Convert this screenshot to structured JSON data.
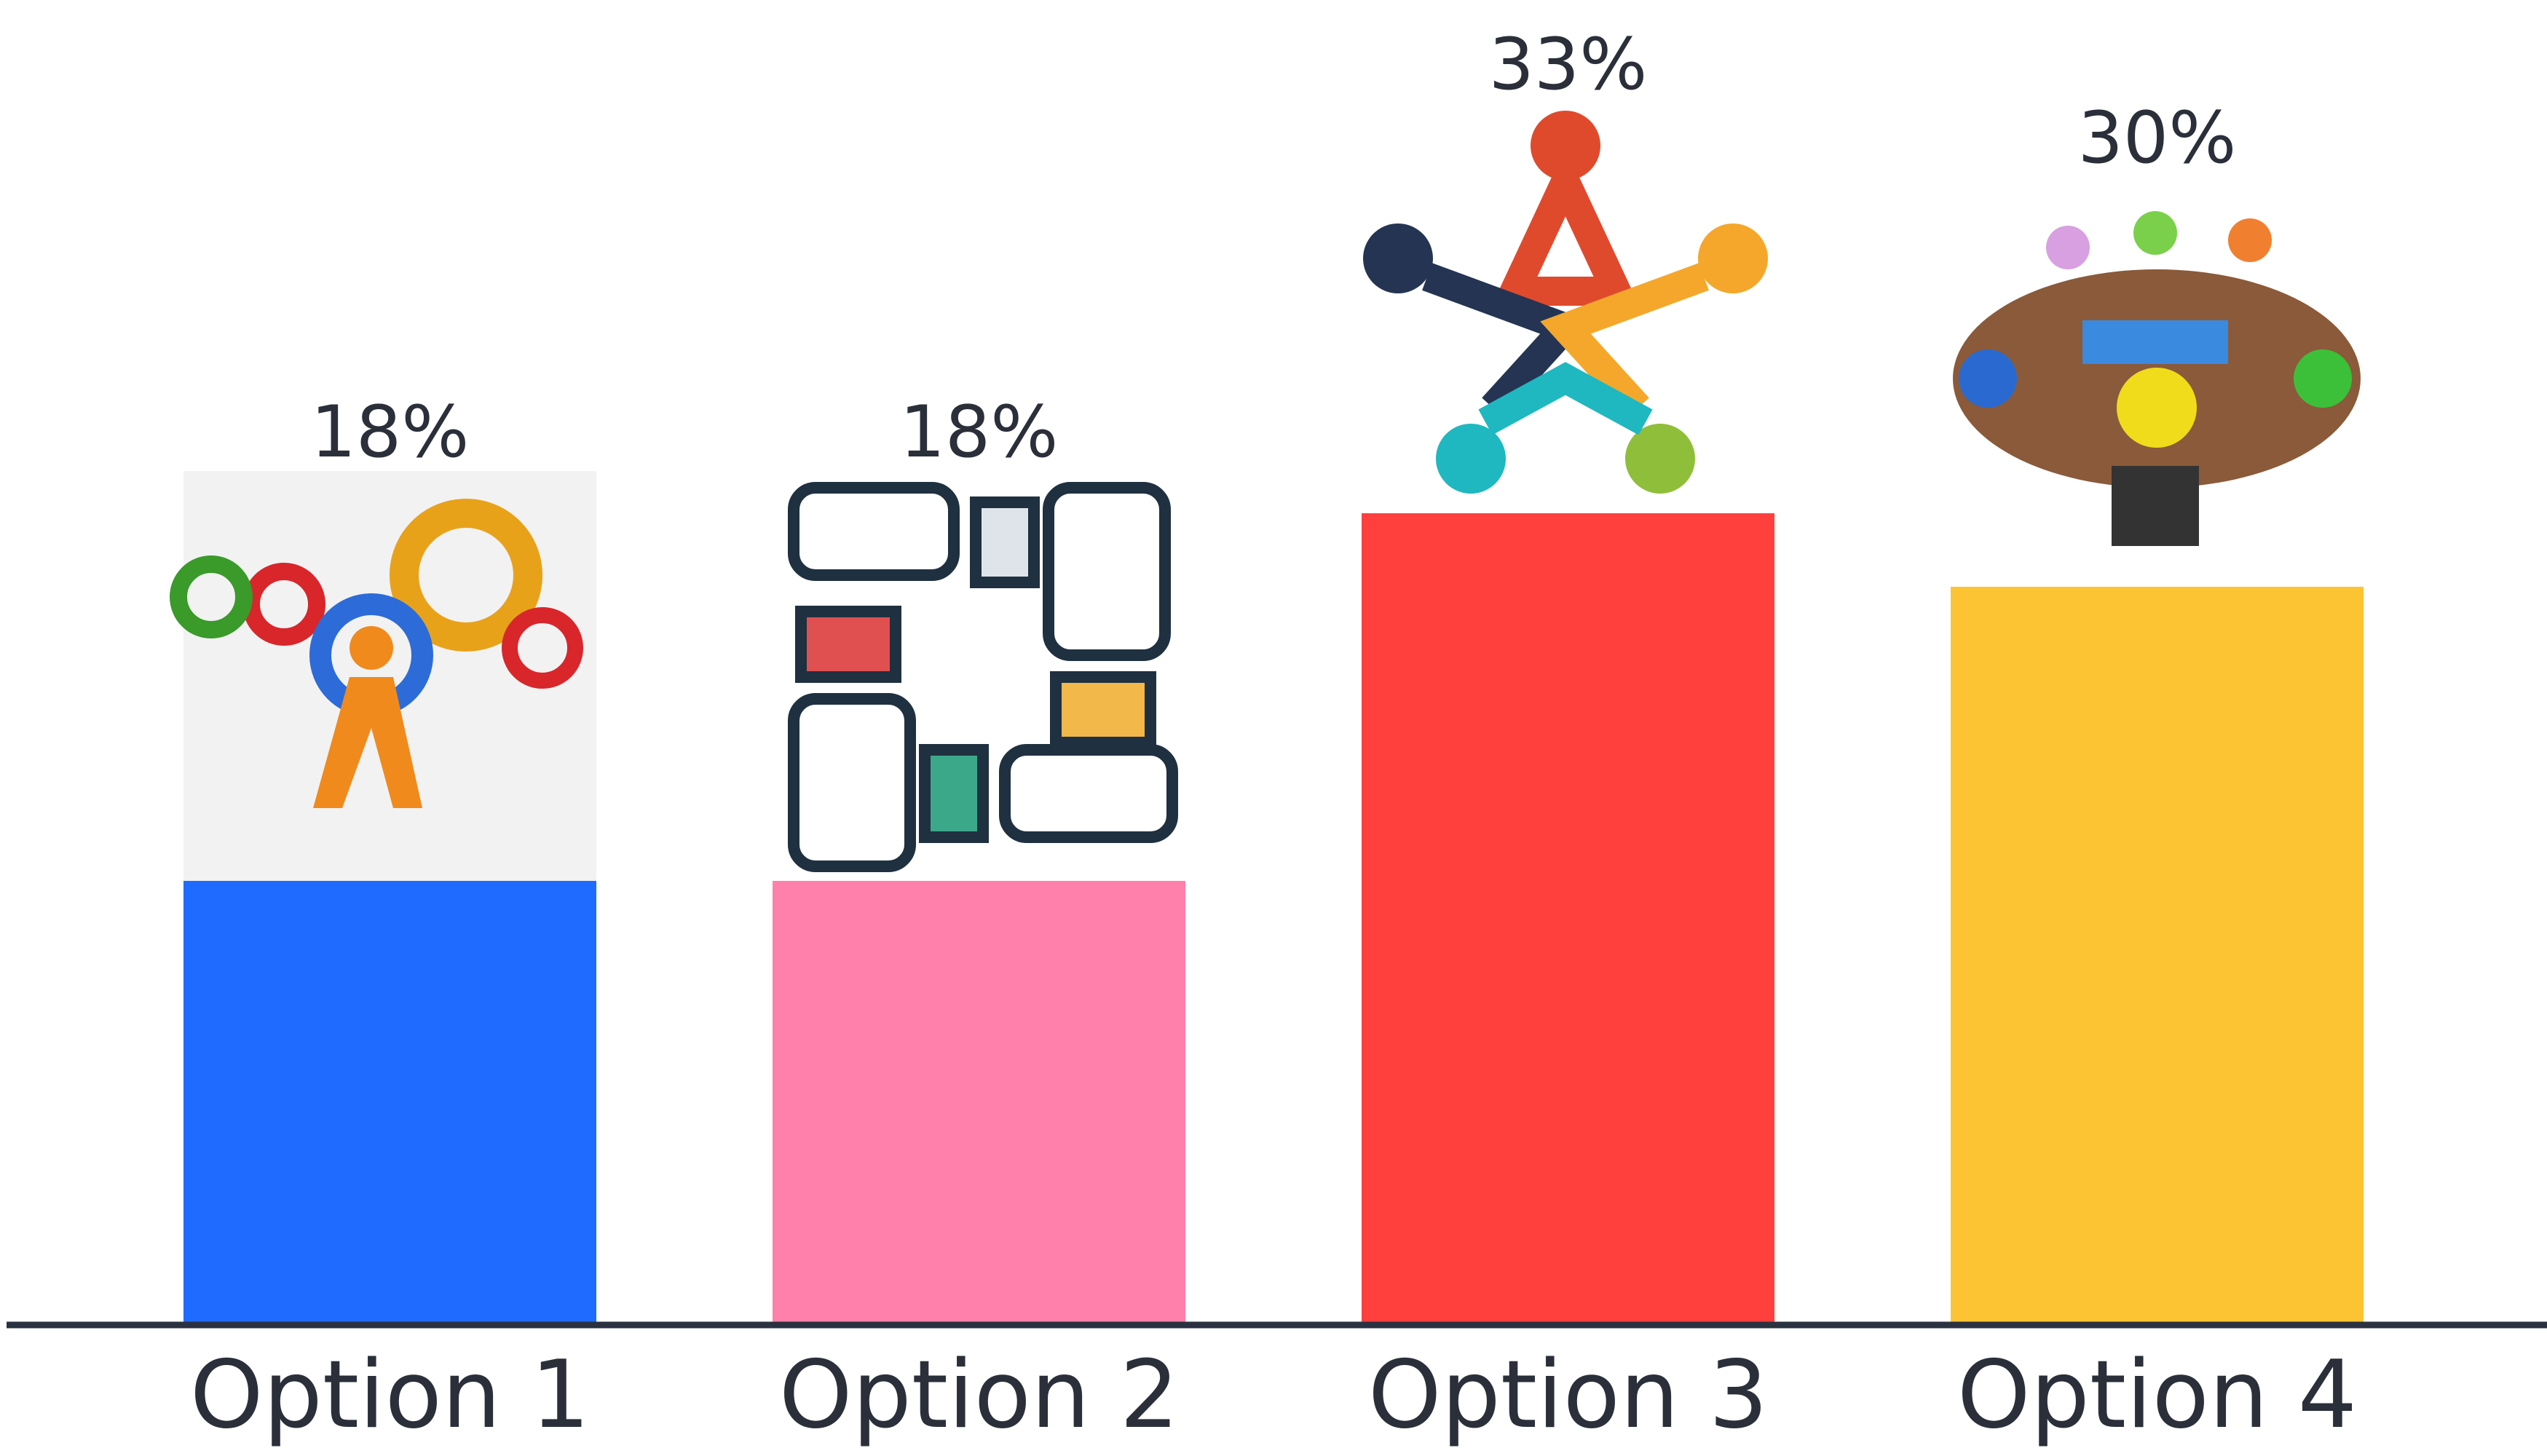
{
  "chart_data": {
    "type": "bar",
    "categories": [
      "Option 1",
      "Option 2",
      "Option 3",
      "Option 4"
    ],
    "values": [
      18,
      18,
      33,
      30
    ],
    "value_labels": [
      "18%",
      "18%",
      "33%",
      "30%"
    ],
    "colors": [
      "#1f6bff",
      "#ff80aa",
      "#ff403d",
      "#fcc433"
    ]
  }
}
